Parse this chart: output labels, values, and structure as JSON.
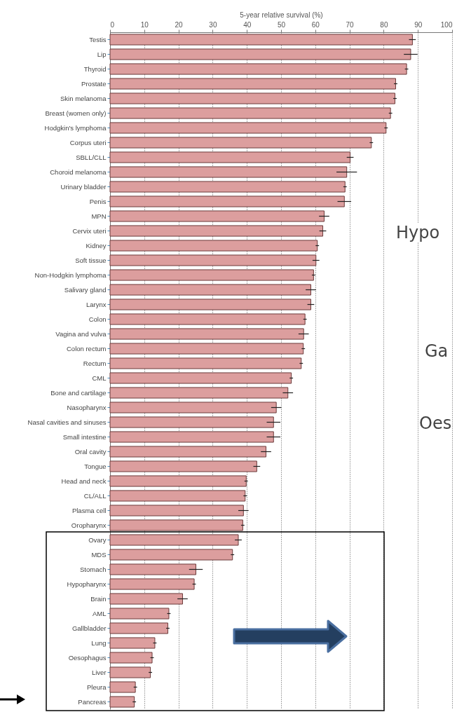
{
  "chart_data": {
    "type": "bar",
    "orientation": "horizontal",
    "xlabel": "5-year relative survival (%)",
    "categories": [
      "Testis",
      "Lip",
      "Thyroid",
      "Prostate",
      "Skin melanoma",
      "Breast (women only)",
      "Hodgkin's lymphoma",
      "Corpus uteri",
      "SBLL/CLL",
      "Choroid melanoma",
      "Urinary bladder",
      "Penis",
      "MPN",
      "Cervix uteri",
      "Kidney",
      "Soft tissue",
      "Non-Hodgkin lymphoma",
      "Salivary gland",
      "Larynx",
      "Colon",
      "Vagina and vulva",
      "Colon rectum",
      "Rectum",
      "CML",
      "Bone and cartilage",
      "Nasopharynx",
      "Nasal cavities and sinuses",
      "Small intestine",
      "Oral cavity",
      "Tongue",
      "Head and neck",
      "CL/ALL",
      "Plasma cell",
      "Oropharynx",
      "Ovary",
      "MDS",
      "Stomach",
      "Hypopharynx",
      "Brain",
      "AML",
      "Gallbladder",
      "Lung",
      "Oesophagus",
      "Liver",
      "Pleura",
      "Pancreas"
    ],
    "values": [
      88.4,
      87.9,
      86.7,
      83.5,
      83.3,
      82.0,
      80.7,
      76.4,
      70.2,
      69.2,
      68.7,
      68.5,
      62.6,
      62.2,
      60.6,
      60.2,
      59.5,
      58.7,
      58.7,
      57.0,
      56.6,
      56.5,
      55.9,
      53.0,
      52.0,
      48.6,
      47.8,
      47.8,
      45.6,
      42.9,
      39.8,
      39.5,
      39.0,
      38.8,
      37.5,
      35.8,
      25.1,
      24.6,
      21.2,
      17.2,
      16.9,
      13.1,
      12.3,
      11.8,
      7.4,
      7.1
    ],
    "errors": [
      1,
      2,
      0.5,
      0.5,
      0.5,
      0.5,
      0.5,
      0.5,
      1,
      3,
      0.5,
      2,
      1.5,
      1,
      0.5,
      1,
      0.5,
      1.5,
      1,
      0.5,
      1.5,
      0.5,
      0.5,
      0.5,
      1.5,
      1.5,
      2,
      2,
      1.5,
      1,
      0.5,
      0.5,
      1.5,
      0.5,
      1,
      0.5,
      2,
      0.5,
      1.5,
      0.5,
      0.5,
      0.5,
      0.5,
      0.5,
      0.5,
      0.5
    ],
    "color": "#dc9e9e",
    "xlim": [
      0,
      100
    ],
    "xticks": [
      0,
      10,
      20,
      30,
      40,
      50,
      60,
      70,
      80,
      90,
      100
    ],
    "grid": "x",
    "annotations": [
      "Hypo",
      "Ga",
      "Oes"
    ]
  }
}
